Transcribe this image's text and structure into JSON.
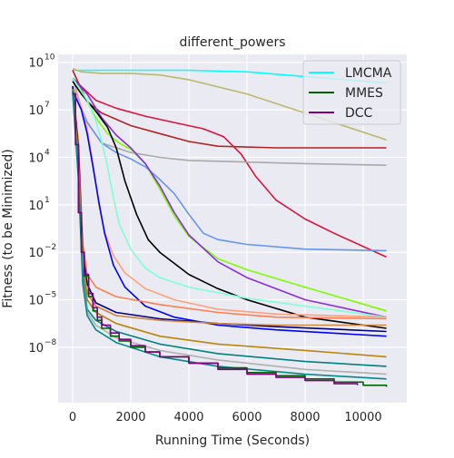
{
  "chart_data": {
    "type": "line",
    "title": "different_powers",
    "xlabel": "Running Time (Seconds)",
    "ylabel": "Fitness (to be Minimized)",
    "xlim": [
      -500,
      11500
    ],
    "ylim_log10": [
      -11.5,
      10.5
    ],
    "y_scale": "log",
    "grid": true,
    "background": "#eaeaf2",
    "legend_position": "top-right",
    "x_ticks": [
      0,
      2000,
      4000,
      6000,
      8000,
      10000
    ],
    "x_tick_labels": [
      "0",
      "2000",
      "4000",
      "6000",
      "8000",
      "10000"
    ],
    "y_ticks_exp": [
      -8,
      -5,
      -2,
      1,
      4,
      7,
      10
    ],
    "y_tick_base": "10",
    "legend": [
      {
        "name": "LMCMA",
        "color": "#00ffff"
      },
      {
        "name": "MMES",
        "color": "#006400"
      },
      {
        "name": "DCC",
        "color": "#800080"
      }
    ],
    "series": [
      {
        "name": "LMCMA",
        "color": "#00ffff",
        "step": false,
        "points": [
          [
            0,
            9.5
          ],
          [
            2000,
            9.5
          ],
          [
            4000,
            9.5
          ],
          [
            6000,
            9.4
          ],
          [
            8000,
            9.1
          ],
          [
            10800,
            8.7
          ]
        ]
      },
      {
        "name": "darkkhaki",
        "color": "#bdb76b",
        "step": false,
        "points": [
          [
            0,
            9.6
          ],
          [
            300,
            9.4
          ],
          [
            1000,
            9.3
          ],
          [
            2000,
            9.3
          ],
          [
            3000,
            9.2
          ],
          [
            4000,
            8.9
          ],
          [
            6000,
            8.0
          ],
          [
            8000,
            6.8
          ],
          [
            10800,
            5.1
          ]
        ]
      },
      {
        "name": "firebrick",
        "color": "#b22222",
        "step": false,
        "points": [
          [
            0,
            9.5
          ],
          [
            500,
            7.5
          ],
          [
            1000,
            6.8
          ],
          [
            2000,
            6.0
          ],
          [
            3000,
            5.5
          ],
          [
            4000,
            5.0
          ],
          [
            5000,
            4.7
          ],
          [
            7000,
            4.6
          ],
          [
            10800,
            4.6
          ]
        ]
      },
      {
        "name": "crimson",
        "color": "#dc143c",
        "step": false,
        "points": [
          [
            0,
            9.0
          ],
          [
            800,
            7.6
          ],
          [
            1500,
            7.1
          ],
          [
            2500,
            6.6
          ],
          [
            3500,
            6.2
          ],
          [
            4500,
            5.8
          ],
          [
            5200,
            5.3
          ],
          [
            5800,
            4.2
          ],
          [
            6300,
            2.8
          ],
          [
            7000,
            1.3
          ],
          [
            8000,
            0.1
          ],
          [
            9000,
            -0.8
          ],
          [
            10800,
            -2.3
          ]
        ]
      },
      {
        "name": "darkgray",
        "color": "#a9a9a9",
        "step": false,
        "points": [
          [
            0,
            9.0
          ],
          [
            400,
            6.5
          ],
          [
            1000,
            4.9
          ],
          [
            2000,
            4.3
          ],
          [
            3000,
            4.0
          ],
          [
            4000,
            3.8
          ],
          [
            6000,
            3.7
          ],
          [
            8000,
            3.6
          ],
          [
            10800,
            3.5
          ]
        ]
      },
      {
        "name": "cornflowerblue",
        "color": "#6495ed",
        "step": false,
        "points": [
          [
            0,
            8.5
          ],
          [
            500,
            6.2
          ],
          [
            1000,
            4.9
          ],
          [
            1500,
            4.3
          ],
          [
            2000,
            3.9
          ],
          [
            2500,
            3.4
          ],
          [
            3000,
            2.6
          ],
          [
            3500,
            1.7
          ],
          [
            4000,
            0.4
          ],
          [
            4500,
            -0.8
          ],
          [
            5000,
            -1.2
          ],
          [
            6000,
            -1.5
          ],
          [
            8000,
            -1.8
          ],
          [
            10800,
            -1.9
          ]
        ]
      },
      {
        "name": "lawngreen",
        "color": "#7cfc00",
        "step": false,
        "points": [
          [
            0,
            9.0
          ],
          [
            300,
            8.2
          ],
          [
            800,
            6.5
          ],
          [
            1200,
            5.5
          ],
          [
            1600,
            4.9
          ],
          [
            2000,
            4.5
          ],
          [
            2500,
            3.6
          ],
          [
            3000,
            2.0
          ],
          [
            3500,
            0.3
          ],
          [
            4000,
            -1.0
          ],
          [
            5000,
            -2.4
          ],
          [
            6000,
            -3.1
          ],
          [
            8000,
            -4.2
          ],
          [
            10800,
            -5.7
          ]
        ]
      },
      {
        "name": "blueviolet",
        "color": "#8a2be2",
        "step": false,
        "points": [
          [
            0,
            9.0
          ],
          [
            500,
            8.0
          ],
          [
            1000,
            6.5
          ],
          [
            1500,
            5.4
          ],
          [
            2000,
            4.6
          ],
          [
            2500,
            3.6
          ],
          [
            3000,
            2.2
          ],
          [
            3500,
            0.5
          ],
          [
            4000,
            -0.9
          ],
          [
            5000,
            -2.6
          ],
          [
            6000,
            -3.6
          ],
          [
            8000,
            -5.0
          ],
          [
            10800,
            -6.1
          ]
        ]
      },
      {
        "name": "black",
        "color": "#000000",
        "step": false,
        "points": [
          [
            0,
            8.8
          ],
          [
            300,
            8.0
          ],
          [
            800,
            6.9
          ],
          [
            1200,
            5.9
          ],
          [
            1500,
            4.6
          ],
          [
            1800,
            2.5
          ],
          [
            2200,
            0.4
          ],
          [
            2600,
            -1.2
          ],
          [
            3000,
            -2.0
          ],
          [
            4000,
            -3.4
          ],
          [
            5000,
            -4.3
          ],
          [
            6000,
            -5.0
          ],
          [
            8000,
            -6.1
          ],
          [
            10800,
            -6.8
          ]
        ]
      },
      {
        "name": "aquamarine",
        "color": "#7fffd4",
        "step": false,
        "points": [
          [
            0,
            9.0
          ],
          [
            500,
            7.6
          ],
          [
            800,
            6.3
          ],
          [
            1000,
            5.0
          ],
          [
            1200,
            3.4
          ],
          [
            1400,
            1.5
          ],
          [
            1600,
            -0.2
          ],
          [
            2000,
            -1.8
          ],
          [
            2500,
            -3.0
          ],
          [
            3000,
            -3.6
          ],
          [
            4000,
            -4.2
          ],
          [
            6000,
            -4.9
          ],
          [
            10800,
            -6.1
          ]
        ]
      },
      {
        "name": "lightsalmon",
        "color": "#ffa07a",
        "step": false,
        "points": [
          [
            0,
            8.5
          ],
          [
            300,
            7.2
          ],
          [
            500,
            5.8
          ],
          [
            700,
            3.6
          ],
          [
            900,
            1.0
          ],
          [
            1100,
            -0.7
          ],
          [
            1400,
            -2.2
          ],
          [
            1800,
            -3.3
          ],
          [
            2500,
            -4.3
          ],
          [
            3500,
            -5.0
          ],
          [
            5000,
            -5.6
          ],
          [
            7000,
            -5.9
          ],
          [
            10800,
            -6.1
          ]
        ]
      },
      {
        "name": "blue",
        "color": "#0000ff",
        "step": false,
        "points": [
          [
            0,
            8.2
          ],
          [
            300,
            7.0
          ],
          [
            500,
            5.5
          ],
          [
            700,
            3.4
          ],
          [
            900,
            1.2
          ],
          [
            1100,
            -0.8
          ],
          [
            1400,
            -2.8
          ],
          [
            1800,
            -4.2
          ],
          [
            2500,
            -5.4
          ],
          [
            3500,
            -6.1
          ],
          [
            5000,
            -6.6
          ],
          [
            7000,
            -6.9
          ],
          [
            10800,
            -7.3
          ]
        ]
      },
      {
        "name": "coral",
        "color": "#ff7f50",
        "step": false,
        "points": [
          [
            0,
            8.5
          ],
          [
            200,
            5.0
          ],
          [
            350,
            -1.5
          ],
          [
            500,
            -3.4
          ],
          [
            800,
            -4.2
          ],
          [
            1500,
            -4.8
          ],
          [
            3000,
            -5.3
          ],
          [
            5000,
            -5.8
          ],
          [
            7000,
            -6.1
          ],
          [
            10800,
            -6.2
          ]
        ]
      },
      {
        "name": "navy",
        "color": "#000080",
        "step": false,
        "points": [
          [
            0,
            8.5
          ],
          [
            200,
            4.5
          ],
          [
            350,
            -2.0
          ],
          [
            500,
            -4.0
          ],
          [
            800,
            -5.2
          ],
          [
            1500,
            -5.8
          ],
          [
            3000,
            -6.2
          ],
          [
            5000,
            -6.5
          ],
          [
            7000,
            -6.7
          ],
          [
            10800,
            -7.0
          ]
        ]
      },
      {
        "name": "peru",
        "color": "#cd853f",
        "step": false,
        "points": [
          [
            0,
            8.3
          ],
          [
            200,
            4.0
          ],
          [
            350,
            -2.5
          ],
          [
            500,
            -4.6
          ],
          [
            800,
            -5.4
          ],
          [
            1500,
            -6.0
          ],
          [
            3000,
            -6.3
          ],
          [
            5000,
            -6.5
          ],
          [
            7000,
            -6.6
          ],
          [
            10800,
            -6.6
          ]
        ]
      },
      {
        "name": "darkgoldenrod",
        "color": "#b8860b",
        "step": false,
        "points": [
          [
            0,
            8.3
          ],
          [
            200,
            3.5
          ],
          [
            350,
            -3.0
          ],
          [
            500,
            -5.0
          ],
          [
            800,
            -5.8
          ],
          [
            1500,
            -6.5
          ],
          [
            3000,
            -7.3
          ],
          [
            5000,
            -7.8
          ],
          [
            8000,
            -8.2
          ],
          [
            10800,
            -8.6
          ]
        ]
      },
      {
        "name": "teal",
        "color": "#008080",
        "step": false,
        "points": [
          [
            0,
            8.2
          ],
          [
            200,
            3.0
          ],
          [
            350,
            -3.5
          ],
          [
            500,
            -5.6
          ],
          [
            800,
            -6.3
          ],
          [
            1500,
            -7.0
          ],
          [
            3000,
            -7.8
          ],
          [
            5000,
            -8.4
          ],
          [
            8000,
            -8.9
          ],
          [
            10800,
            -9.2
          ]
        ]
      },
      {
        "name": "silver",
        "color": "#b0b0b0",
        "step": false,
        "points": [
          [
            0,
            8.1
          ],
          [
            200,
            2.8
          ],
          [
            350,
            -3.8
          ],
          [
            500,
            -5.8
          ],
          [
            800,
            -6.6
          ],
          [
            1500,
            -7.4
          ],
          [
            3000,
            -8.2
          ],
          [
            5000,
            -8.8
          ],
          [
            8000,
            -9.4
          ],
          [
            10800,
            -9.7
          ]
        ]
      },
      {
        "name": "darkcyan",
        "color": "#008b8b",
        "step": false,
        "points": [
          [
            0,
            8.1
          ],
          [
            200,
            2.6
          ],
          [
            350,
            -4.0
          ],
          [
            500,
            -6.0
          ],
          [
            800,
            -6.9
          ],
          [
            1500,
            -7.7
          ],
          [
            3000,
            -8.6
          ],
          [
            5000,
            -9.2
          ],
          [
            8000,
            -9.7
          ],
          [
            10800,
            -10.0
          ]
        ]
      },
      {
        "name": "MMES",
        "color": "#006400",
        "step": true,
        "points": [
          [
            0,
            8.0
          ],
          [
            100,
            4.8
          ],
          [
            200,
            0.5
          ],
          [
            300,
            -2.0
          ],
          [
            400,
            -3.5
          ],
          [
            550,
            -4.8
          ],
          [
            700,
            -5.7
          ],
          [
            850,
            -6.3
          ],
          [
            1000,
            -6.8
          ],
          [
            1300,
            -7.3
          ],
          [
            1600,
            -7.6
          ],
          [
            2000,
            -8.0
          ],
          [
            2500,
            -8.3
          ],
          [
            3000,
            -8.6
          ],
          [
            4000,
            -9.0
          ],
          [
            5000,
            -9.3
          ],
          [
            6000,
            -9.6
          ],
          [
            7000,
            -9.8
          ],
          [
            8000,
            -10.0
          ],
          [
            9000,
            -10.2
          ],
          [
            10000,
            -10.4
          ],
          [
            10800,
            -10.5
          ]
        ]
      },
      {
        "name": "DCC",
        "color": "#800080",
        "step": true,
        "points": [
          [
            0,
            8.0
          ],
          [
            100,
            4.8
          ],
          [
            200,
            0.5
          ],
          [
            300,
            -2.0
          ],
          [
            400,
            -3.4
          ],
          [
            550,
            -4.6
          ],
          [
            700,
            -5.5
          ],
          [
            850,
            -6.1
          ],
          [
            1000,
            -6.6
          ],
          [
            1300,
            -7.1
          ],
          [
            1600,
            -7.5
          ],
          [
            2000,
            -7.9
          ],
          [
            2500,
            -8.3
          ],
          [
            3000,
            -8.6
          ],
          [
            4000,
            -9.0
          ],
          [
            5000,
            -9.4
          ],
          [
            6000,
            -9.7
          ],
          [
            7000,
            -9.9
          ],
          [
            8000,
            -10.1
          ],
          [
            9000,
            -10.3
          ],
          [
            9800,
            -10.4
          ]
        ]
      }
    ]
  }
}
